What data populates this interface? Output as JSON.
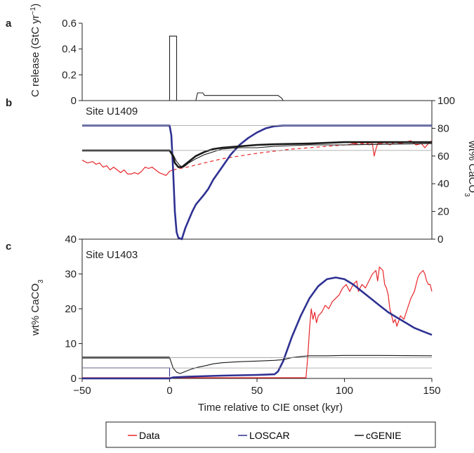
{
  "colors": {
    "data": "#e8262a",
    "loscar": "#2e3192",
    "cgenie": "#1a1a1a",
    "ref": "#999999",
    "axis": "#222222"
  },
  "legend": [
    {
      "key": "data",
      "label": "Data"
    },
    {
      "key": "loscar",
      "label": "LOSCAR"
    },
    {
      "key": "cgenie",
      "label": "cGENIE"
    }
  ],
  "chart_data": [
    {
      "type": "line",
      "panel": "a",
      "ylabel": "C release (GtC yr",
      "ylabel_sup": "−1",
      "ylabel_tail": ")",
      "ylim": [
        0,
        0.6
      ],
      "yticks": [
        "0",
        "0.2",
        "0.4",
        "0.6"
      ],
      "xlim": [
        -50,
        150
      ],
      "series": [
        {
          "key": "emission",
          "points": [
            [
              -50,
              0
            ],
            [
              0,
              0
            ],
            [
              0,
              0.5
            ],
            [
              4,
              0.5
            ],
            [
              4,
              0
            ],
            [
              15,
              0
            ],
            [
              16,
              0.06
            ],
            [
              19,
              0.06
            ],
            [
              20,
              0.04
            ],
            [
              62,
              0.04
            ],
            [
              64,
              0.02
            ],
            [
              65,
              0
            ],
            [
              150,
              0
            ]
          ]
        }
      ]
    },
    {
      "type": "line",
      "panel": "b",
      "site": "Site U1409",
      "ylabel": "wt% CaCO",
      "ylabel_sub": "3",
      "ylim": [
        0,
        100
      ],
      "yticks": [
        "0",
        "20",
        "40",
        "60",
        "80",
        "100"
      ],
      "xlim": [
        -50,
        150
      ],
      "series": [
        {
          "key": "data",
          "style": "solid",
          "points": [
            [
              -50,
              57
            ],
            [
              -47,
              55
            ],
            [
              -44,
              56
            ],
            [
              -42,
              54
            ],
            [
              -40,
              55
            ],
            [
              -38,
              52
            ],
            [
              -36,
              53
            ],
            [
              -34,
              50
            ],
            [
              -32,
              52
            ],
            [
              -30,
              50
            ],
            [
              -28,
              48
            ],
            [
              -26,
              50
            ],
            [
              -24,
              47
            ],
            [
              -22,
              47
            ],
            [
              -20,
              48
            ],
            [
              -18,
              47
            ],
            [
              -16,
              49
            ],
            [
              -14,
              52
            ],
            [
              -12,
              51
            ],
            [
              -10,
              52
            ],
            [
              -8,
              50
            ],
            [
              -6,
              48
            ],
            [
              -4,
              47
            ],
            [
              -2,
              46
            ],
            [
              0,
              49
            ],
            [
              2,
              50
            ]
          ]
        },
        {
          "key": "data",
          "style": "solid",
          "points": [
            [
              104,
              69
            ],
            [
              106,
              69
            ],
            [
              108,
              70
            ],
            [
              110,
              69
            ],
            [
              112,
              70
            ],
            [
              114,
              68
            ],
            [
              116,
              69
            ],
            [
              117,
              60
            ],
            [
              118,
              65
            ],
            [
              119,
              69
            ],
            [
              121,
              69
            ],
            [
              123,
              70
            ],
            [
              126,
              68
            ],
            [
              129,
              70
            ],
            [
              132,
              69
            ],
            [
              135,
              70
            ],
            [
              138,
              71
            ],
            [
              141,
              68
            ],
            [
              144,
              69
            ],
            [
              146,
              66
            ],
            [
              148,
              69
            ],
            [
              150,
              71
            ]
          ]
        },
        {
          "key": "data",
          "style": "dashed",
          "points": [
            [
              2,
              50
            ],
            [
              10,
              52
            ],
            [
              20,
              55
            ],
            [
              30,
              58
            ],
            [
              40,
              60
            ],
            [
              50,
              62
            ],
            [
              60,
              63.5
            ],
            [
              70,
              65
            ],
            [
              80,
              66
            ],
            [
              90,
              67
            ],
            [
              100,
              68
            ],
            [
              110,
              69
            ],
            [
              120,
              70
            ]
          ]
        },
        {
          "key": "loscar",
          "style": "bold",
          "points": [
            [
              -50,
              82
            ],
            [
              0,
              82
            ],
            [
              1,
              75
            ],
            [
              2,
              50
            ],
            [
              3,
              20
            ],
            [
              4,
              5
            ],
            [
              5,
              1
            ],
            [
              7,
              0
            ],
            [
              9,
              8
            ],
            [
              11,
              14
            ],
            [
              13,
              20
            ],
            [
              15,
              25
            ],
            [
              17,
              28
            ],
            [
              19,
              31
            ],
            [
              22,
              36
            ],
            [
              25,
              43
            ],
            [
              30,
              52
            ],
            [
              35,
              61
            ],
            [
              40,
              68
            ],
            [
              45,
              73
            ],
            [
              50,
              77
            ],
            [
              55,
              80
            ],
            [
              60,
              81.5
            ],
            [
              65,
              82
            ],
            [
              150,
              82
            ]
          ]
        },
        {
          "key": "loscar",
          "style": "ref",
          "points": [
            [
              -50,
              82
            ],
            [
              150,
              82
            ]
          ]
        },
        {
          "key": "cgenie",
          "style": "bold",
          "points": [
            [
              -50,
              64
            ],
            [
              0,
              64
            ],
            [
              2,
              60
            ],
            [
              3,
              55
            ],
            [
              5,
              52
            ],
            [
              7,
              52
            ],
            [
              10,
              55
            ],
            [
              15,
              60
            ],
            [
              20,
              63
            ],
            [
              25,
              65
            ],
            [
              30,
              66
            ],
            [
              40,
              67
            ],
            [
              50,
              68
            ],
            [
              60,
              68.5
            ],
            [
              80,
              69
            ],
            [
              100,
              70
            ],
            [
              150,
              70
            ]
          ]
        },
        {
          "key": "cgenie",
          "style": "thin",
          "points": [
            [
              0,
              64
            ],
            [
              2,
              61
            ],
            [
              4,
              56
            ],
            [
              6,
              53
            ],
            [
              8,
              52
            ],
            [
              11,
              55
            ],
            [
              15,
              58
            ],
            [
              20,
              61
            ],
            [
              25,
              63
            ],
            [
              30,
              65
            ],
            [
              40,
              66
            ],
            [
              50,
              66
            ],
            [
              60,
              67
            ],
            [
              80,
              68
            ],
            [
              100,
              68
            ],
            [
              150,
              69
            ]
          ]
        },
        {
          "key": "cgenie",
          "style": "ref",
          "points": [
            [
              -50,
              64
            ],
            [
              150,
              64
            ]
          ]
        }
      ]
    },
    {
      "type": "line",
      "panel": "c",
      "site": "Site U1403",
      "ylabel": "wt% CaCO",
      "ylabel_sub": "3",
      "xlabel": "Time relative to CIE onset (kyr)",
      "ylim": [
        0,
        40
      ],
      "yticks": [
        "0",
        "10",
        "20",
        "30",
        "40"
      ],
      "xlim": [
        -50,
        150
      ],
      "xticks": [
        "−50",
        "0",
        "50",
        "100",
        "150"
      ],
      "xtick_values": [
        -50,
        0,
        50,
        100,
        150
      ],
      "series": [
        {
          "key": "data",
          "style": "solid",
          "points": [
            [
              -50,
              0.2
            ],
            [
              78,
              0.2
            ],
            [
              79,
              6
            ],
            [
              80,
              14
            ],
            [
              81,
              20
            ],
            [
              82,
              17
            ],
            [
              83,
              19
            ],
            [
              84,
              16
            ],
            [
              85,
              18
            ],
            [
              87,
              19
            ],
            [
              89,
              21
            ],
            [
              91,
              20
            ],
            [
              93,
              22
            ],
            [
              95,
              23
            ],
            [
              97,
              24
            ],
            [
              99,
              26
            ],
            [
              101,
              27
            ],
            [
              103,
              25
            ],
            [
              105,
              27
            ],
            [
              107,
              28
            ],
            [
              108,
              25
            ],
            [
              110,
              27
            ],
            [
              112,
              26
            ],
            [
              114,
              28
            ],
            [
              116,
              30
            ],
            [
              118,
              31
            ],
            [
              119,
              28
            ],
            [
              120,
              32
            ],
            [
              122,
              31
            ],
            [
              123,
              27
            ],
            [
              124,
              26
            ],
            [
              125,
              24
            ],
            [
              126,
              20
            ],
            [
              127,
              18
            ],
            [
              128,
              16
            ],
            [
              129,
              17
            ],
            [
              130,
              15
            ],
            [
              132,
              18
            ],
            [
              134,
              17
            ],
            [
              136,
              20
            ],
            [
              138,
              23
            ],
            [
              140,
              25
            ],
            [
              141,
              27
            ],
            [
              142,
              29
            ],
            [
              143,
              30
            ],
            [
              145,
              31
            ],
            [
              146,
              30
            ],
            [
              147,
              28
            ],
            [
              148,
              27
            ],
            [
              149,
              27
            ],
            [
              150,
              25
            ]
          ]
        },
        {
          "key": "loscar",
          "style": "bold",
          "points": [
            [
              -50,
              0
            ],
            [
              0,
              0
            ],
            [
              2,
              0.3
            ],
            [
              10,
              0.5
            ],
            [
              30,
              0.8
            ],
            [
              50,
              1
            ],
            [
              60,
              1.2
            ],
            [
              62,
              2
            ],
            [
              63,
              3
            ],
            [
              65,
              5
            ],
            [
              70,
              12
            ],
            [
              75,
              18
            ],
            [
              80,
              23
            ],
            [
              85,
              26.5
            ],
            [
              90,
              28.5
            ],
            [
              95,
              29
            ],
            [
              100,
              28.5
            ],
            [
              105,
              27
            ],
            [
              110,
              25
            ],
            [
              115,
              23
            ],
            [
              120,
              21
            ],
            [
              125,
              19
            ],
            [
              130,
              17.5
            ],
            [
              135,
              16
            ],
            [
              140,
              14.5
            ],
            [
              145,
              13.5
            ],
            [
              150,
              12.5
            ]
          ]
        },
        {
          "key": "loscar",
          "style": "thin",
          "points": [
            [
              -50,
              3
            ],
            [
              0,
              3
            ],
            [
              0,
              0.5
            ]
          ]
        },
        {
          "key": "cgenie",
          "style": "bold",
          "points": [
            [
              -50,
              6
            ],
            [
              0,
              6
            ]
          ]
        },
        {
          "key": "cgenie",
          "style": "thin",
          "points": [
            [
              0,
              6
            ],
            [
              2,
              3
            ],
            [
              4,
              1.8
            ],
            [
              6,
              1.4
            ],
            [
              8,
              1.8
            ],
            [
              12,
              2.6
            ],
            [
              16,
              3.2
            ],
            [
              20,
              3.6
            ],
            [
              25,
              4.2
            ],
            [
              30,
              4.5
            ],
            [
              40,
              4.8
            ],
            [
              50,
              5
            ],
            [
              60,
              5.2
            ],
            [
              65,
              5.4
            ],
            [
              70,
              6
            ],
            [
              75,
              6.3
            ],
            [
              80,
              6.5
            ],
            [
              90,
              6.5
            ],
            [
              100,
              6.6
            ],
            [
              110,
              6.6
            ],
            [
              120,
              6.6
            ],
            [
              150,
              6.5
            ]
          ]
        },
        {
          "key": "cgenie",
          "style": "ref",
          "points": [
            [
              -50,
              6
            ],
            [
              150,
              6
            ]
          ]
        },
        {
          "key": "cgenie",
          "style": "ref",
          "points": [
            [
              -50,
              3
            ],
            [
              150,
              3
            ]
          ]
        }
      ]
    }
  ]
}
